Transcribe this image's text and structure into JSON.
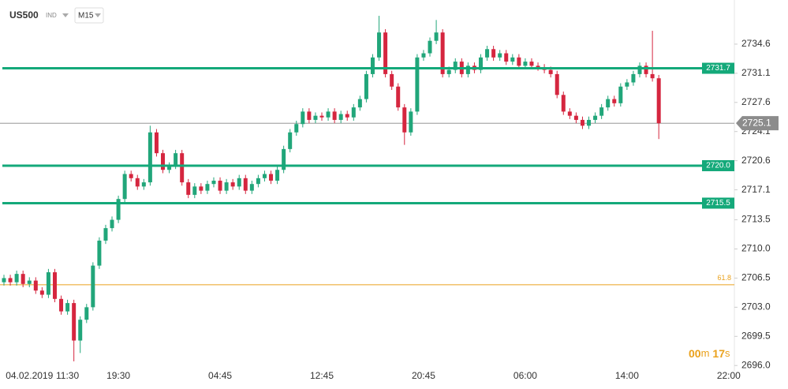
{
  "chart_data": {
    "type": "candlestick",
    "symbol": "US500",
    "instrument_type": "IND",
    "timeframe": "M15",
    "up_color": "#21a67a",
    "down_color": "#d5263f",
    "categories": [
      null,
      null,
      null,
      null,
      "04.02.2019",
      null,
      null,
      null,
      null,
      null,
      "11:30",
      null,
      null,
      null,
      null,
      null,
      null,
      null,
      "19:30",
      null,
      null,
      null,
      null,
      null,
      null,
      null,
      null,
      null,
      null,
      null,
      null,
      null,
      null,
      null,
      "04:45",
      null,
      null,
      null,
      null,
      null,
      null,
      null,
      null,
      null,
      null,
      null,
      null,
      null,
      null,
      null,
      "12:45",
      null,
      null,
      null,
      null,
      null,
      null,
      null,
      null,
      null,
      null,
      null,
      null,
      null,
      null,
      null,
      "20:45",
      null,
      null,
      null,
      null,
      null,
      null,
      null,
      null,
      null,
      null,
      null,
      null,
      null,
      null,
      null,
      "06:00",
      null,
      null,
      null,
      null,
      null,
      null,
      null,
      null,
      null,
      null,
      null,
      null,
      null,
      null,
      null,
      "14:00",
      null,
      null,
      null,
      null,
      null,
      null,
      null,
      null,
      null,
      null,
      null,
      null,
      null,
      null,
      null,
      "22:00"
    ],
    "open": [
      2706.0,
      2706.5,
      2706.0,
      2707.0,
      2705.8,
      2706.2,
      2705.0,
      2704.5,
      2707.2,
      2704.0,
      2702.5,
      2703.5,
      2699.0,
      2701.5,
      2703.0,
      2708.0,
      2711.0,
      2712.5,
      2713.5,
      2716.0,
      2719.0,
      2718.5,
      2717.5,
      2718.0,
      2724.0,
      2721.5,
      2719.5,
      2720.0,
      2721.5,
      2718.0,
      2716.5,
      2717.5,
      2717.0,
      2717.8,
      2718.2,
      2717.0,
      2718.0,
      2717.5,
      2718.5,
      2717.0,
      2717.8,
      2718.5,
      2719.0,
      2718.2,
      2719.5,
      2722.0,
      2724.0,
      2725.0,
      2726.5,
      2725.5,
      2726.0,
      2725.8,
      2726.5,
      2725.5,
      2726.2,
      2725.8,
      2727.0,
      2728.0,
      2731.0,
      2733.0,
      2736.0,
      2731.0,
      2729.5,
      2727.0,
      2724.0,
      2726.5,
      2733.0,
      2733.5,
      2735.0,
      2736.0,
      2731.0,
      2731.5,
      2732.5,
      2731.0,
      2732.0,
      2731.5,
      2733.0,
      2734.0,
      2733.0,
      2733.5,
      2732.5,
      2733.0,
      2732.0,
      2732.5,
      2732.0,
      2731.8,
      2731.5,
      2731.0,
      2728.5,
      2726.5,
      2726.0,
      2725.5,
      2724.8,
      2725.5,
      2726.0,
      2727.0,
      2728.0,
      2727.5,
      2729.5,
      2730.0,
      2731.0,
      2732.0,
      2731.0,
      2730.5,
      null,
      null,
      null,
      null,
      null,
      null,
      null,
      null,
      null,
      null,
      null
    ],
    "high": [
      2706.9,
      2706.9,
      2707.4,
      2707.4,
      2706.6,
      2706.6,
      2705.4,
      2707.6,
      2707.6,
      2704.4,
      2703.9,
      2703.9,
      2701.9,
      2703.4,
      2708.4,
      2711.4,
      2712.9,
      2713.9,
      2716.4,
      2719.4,
      2719.4,
      2718.9,
      2718.4,
      2724.8,
      2724.4,
      2721.9,
      2720.4,
      2721.9,
      2721.9,
      2718.4,
      2717.9,
      2717.9,
      2718.2,
      2718.6,
      2718.6,
      2718.4,
      2718.4,
      2718.9,
      2718.9,
      2718.2,
      2718.9,
      2719.4,
      2719.4,
      2719.9,
      2722.4,
      2724.4,
      2725.4,
      2726.9,
      2726.9,
      2726.4,
      2726.4,
      2726.9,
      2726.9,
      2726.6,
      2726.6,
      2727.4,
      2728.4,
      2731.4,
      2733.4,
      2738.0,
      2736.4,
      2731.4,
      2729.9,
      2727.4,
      2726.9,
      2733.4,
      2733.9,
      2735.4,
      2737.5,
      2736.4,
      2731.9,
      2732.9,
      2732.9,
      2732.4,
      2732.4,
      2733.4,
      2734.4,
      2734.4,
      2733.9,
      2733.9,
      2733.4,
      2733.4,
      2732.9,
      2732.9,
      2732.4,
      2732.2,
      2731.9,
      2731.4,
      2728.9,
      2726.9,
      2726.4,
      2725.9,
      2725.9,
      2726.4,
      2727.4,
      2728.4,
      2728.4,
      2729.9,
      2730.4,
      2731.4,
      2732.4,
      2732.4,
      2736.2,
      2730.9,
      null,
      null,
      null,
      null,
      null,
      null,
      null,
      null,
      null,
      null,
      null
    ],
    "low": [
      2705.6,
      2705.6,
      2705.6,
      2705.4,
      2705.4,
      2704.6,
      2704.1,
      2704.1,
      2703.6,
      2702.1,
      2702.1,
      2696.5,
      2697.5,
      2701.1,
      2702.6,
      2707.6,
      2710.6,
      2712.1,
      2713.1,
      2715.6,
      2718.1,
      2717.1,
      2717.1,
      2717.6,
      2721.1,
      2719.1,
      2719.1,
      2719.6,
      2717.6,
      2716.1,
      2716.1,
      2716.6,
      2716.6,
      2717.4,
      2716.6,
      2716.6,
      2717.1,
      2717.1,
      2716.6,
      2716.6,
      2717.4,
      2718.1,
      2717.8,
      2717.8,
      2719.1,
      2721.6,
      2723.6,
      2724.6,
      2725.1,
      2725.1,
      2725.4,
      2725.4,
      2725.1,
      2725.1,
      2725.4,
      2725.4,
      2726.6,
      2727.6,
      2730.6,
      2732.6,
      2730.6,
      2729.1,
      2726.6,
      2722.5,
      2723.6,
      2726.1,
      2732.6,
      2733.1,
      2734.6,
      2730.6,
      2730.6,
      2731.1,
      2730.6,
      2730.6,
      2731.1,
      2731.1,
      2732.6,
      2732.6,
      2732.6,
      2732.1,
      2732.1,
      2731.6,
      2731.6,
      2731.6,
      2731.4,
      2731.1,
      2730.6,
      2728.1,
      2726.1,
      2725.6,
      2725.1,
      2724.4,
      2724.4,
      2725.1,
      2725.6,
      2726.6,
      2727.1,
      2727.1,
      2729.1,
      2729.6,
      2730.6,
      2730.6,
      2730.1,
      2723.2,
      null,
      null,
      null,
      null,
      null,
      null,
      null,
      null,
      null,
      null,
      null
    ],
    "close": [
      2706.5,
      2706.0,
      2707.0,
      2705.8,
      2706.2,
      2705.0,
      2704.5,
      2707.2,
      2704.0,
      2702.5,
      2703.5,
      2699.0,
      2701.5,
      2703.0,
      2708.0,
      2711.0,
      2712.5,
      2713.5,
      2716.0,
      2719.0,
      2718.5,
      2717.5,
      2718.0,
      2724.0,
      2721.5,
      2719.5,
      2720.0,
      2721.5,
      2718.0,
      2716.5,
      2717.5,
      2717.0,
      2717.8,
      2718.2,
      2717.0,
      2718.0,
      2717.5,
      2718.5,
      2717.0,
      2717.8,
      2718.5,
      2719.0,
      2718.2,
      2719.5,
      2722.0,
      2724.0,
      2725.0,
      2726.5,
      2725.5,
      2726.0,
      2725.8,
      2726.5,
      2725.5,
      2726.2,
      2725.8,
      2727.0,
      2728.0,
      2731.0,
      2733.0,
      2736.0,
      2731.0,
      2729.5,
      2727.0,
      2724.0,
      2726.5,
      2733.0,
      2733.5,
      2735.0,
      2736.0,
      2731.0,
      2731.5,
      2732.5,
      2731.0,
      2732.0,
      2731.5,
      2733.0,
      2734.0,
      2733.0,
      2733.5,
      2732.5,
      2733.0,
      2732.0,
      2732.5,
      2732.0,
      2731.8,
      2731.5,
      2731.0,
      2728.5,
      2726.5,
      2726.0,
      2725.5,
      2724.8,
      2725.5,
      2726.0,
      2727.0,
      2728.0,
      2727.5,
      2729.5,
      2730.0,
      2731.0,
      2732.0,
      2731.0,
      2730.5,
      2725.1,
      null,
      null,
      null,
      null,
      null,
      null,
      null,
      null,
      null,
      null,
      null
    ],
    "ylim": [
      2694.6,
      2739.9
    ],
    "yticks": [
      {
        "value": 2696.0,
        "label": "2696.0"
      },
      2699.5,
      {
        "value": 2703.0,
        "label": "2703.0"
      },
      2706.5,
      {
        "value": 2710.0,
        "label": "2710.0"
      },
      2713.5,
      2717.1,
      2720.6,
      2724.1,
      2727.6,
      2731.1,
      2734.6
    ],
    "levels": [
      2731.7,
      {
        "value": 2720.0,
        "label": "2720.0"
      },
      2715.5
    ],
    "level_color": "#14a97a",
    "current_price": 2725.1,
    "fib_level": {
      "value": 2705.7,
      "label": "61.8"
    },
    "fib_color": "#eaa11c",
    "countdown": [
      "00",
      "m",
      "17",
      "s"
    ],
    "grid": false
  }
}
